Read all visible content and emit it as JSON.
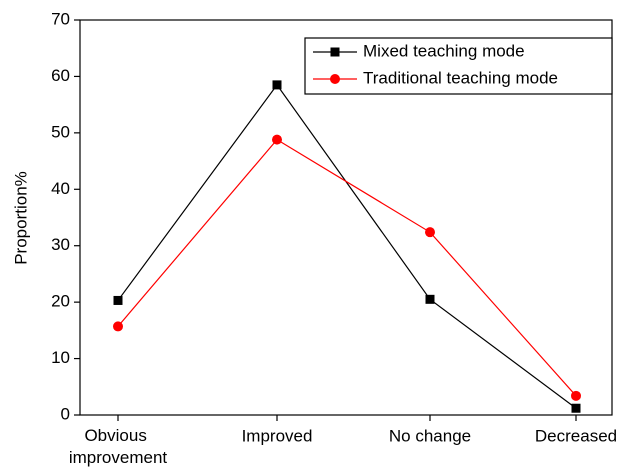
{
  "chart_data": {
    "type": "line",
    "ylabel": "Proportion%",
    "categories": [
      "Obvious improvement",
      "Improved",
      "No change",
      "Decreased"
    ],
    "series": [
      {
        "name": "Mixed teaching mode",
        "color": "#000000",
        "marker": "square",
        "values": [
          20.3,
          58.5,
          20.5,
          1.2
        ]
      },
      {
        "name": "Traditional teaching mode",
        "color": "#ff0000",
        "marker": "circle",
        "values": [
          15.7,
          48.8,
          32.4,
          3.4
        ]
      }
    ],
    "ylim": [
      0,
      70
    ],
    "yticks": [
      0,
      10,
      20,
      30,
      40,
      50,
      60,
      70
    ],
    "legend": "upper right"
  }
}
